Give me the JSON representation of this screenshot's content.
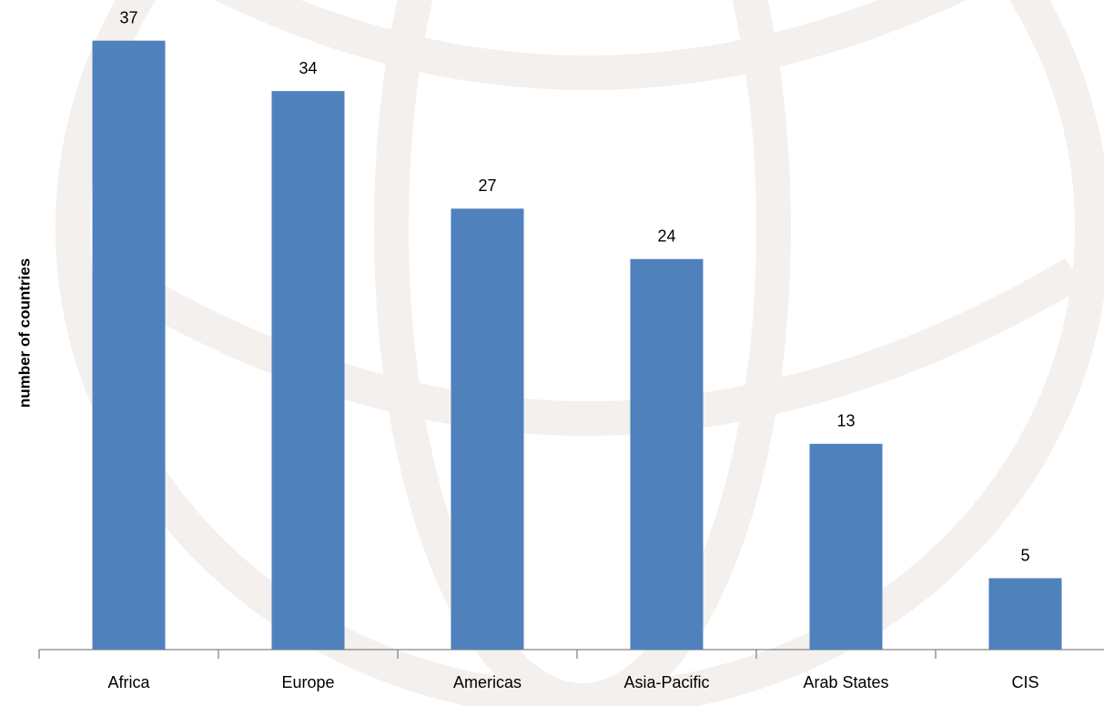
{
  "chart_data": {
    "type": "bar",
    "ylabel": "number  of countries",
    "categories": [
      "Africa",
      "Europe",
      "Americas",
      "Asia-Pacific",
      "Arab States",
      "CIS"
    ],
    "values": [
      37,
      34,
      27,
      24,
      13,
      5
    ],
    "color": "#4f81bd",
    "ylim": [
      0.75,
      38.5
    ]
  }
}
